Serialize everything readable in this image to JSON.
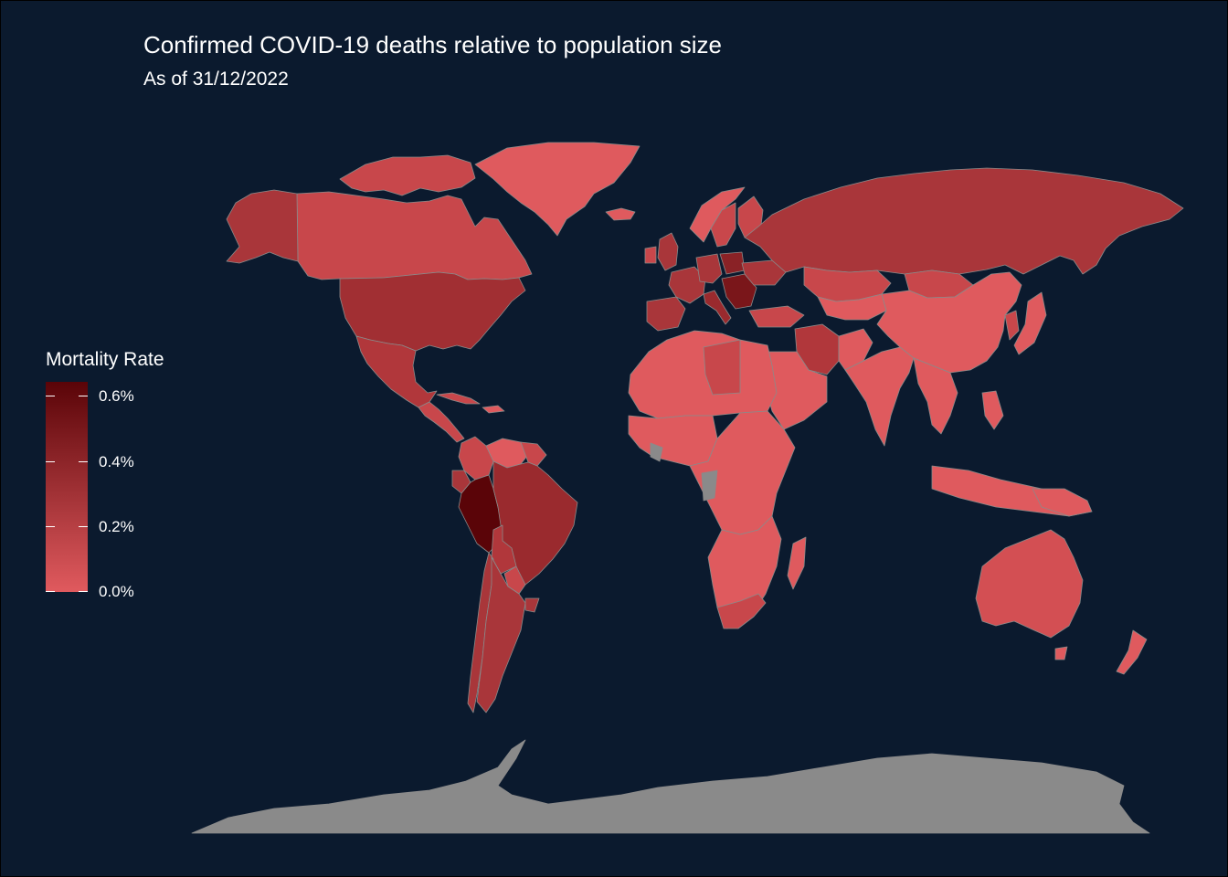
{
  "title": "Confirmed COVID-19 deaths relative to population size",
  "subtitle": "As of 31/12/2022",
  "legend": {
    "title": "Mortality Rate",
    "labels": [
      "0.6%",
      "0.4%",
      "0.2%",
      "0.0%"
    ],
    "range": [
      0.0,
      0.66
    ],
    "color_low": "#e05a5e",
    "color_high": "#5a0408"
  },
  "colors": {
    "background": "#0b1a2e",
    "no_data": "#8a8a8a",
    "border": "#8a8a8a"
  }
}
